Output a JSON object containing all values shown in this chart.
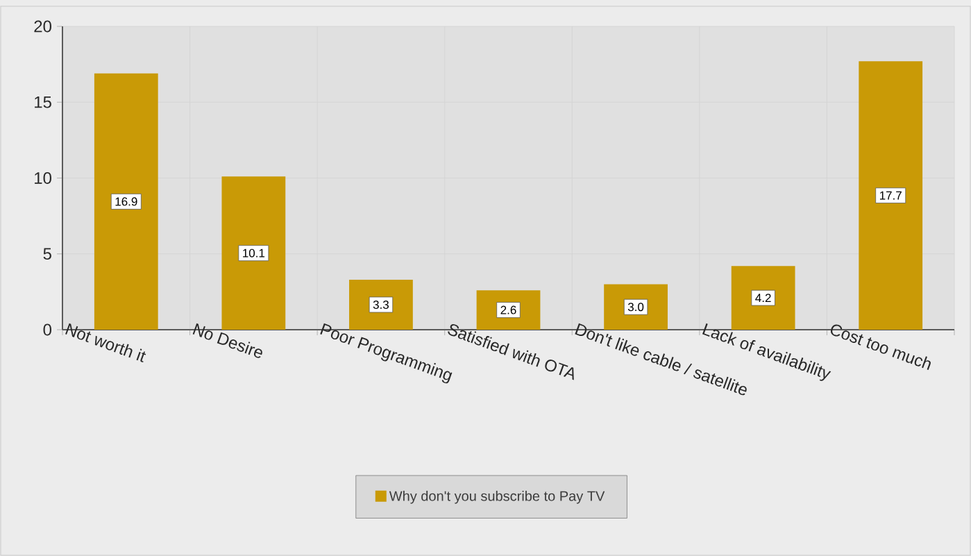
{
  "chart_data": {
    "type": "bar",
    "categories": [
      "Not worth it",
      "No Desire",
      "Poor Programming",
      "Satisfied with OTA",
      "Don't like cable / satellite",
      "Lack of availability",
      "Cost too much"
    ],
    "series": [
      {
        "name": "Why don't you subscribe to Pay TV",
        "color": "#c99a06",
        "values": [
          16.9,
          10.1,
          3.3,
          2.6,
          3.0,
          4.2,
          17.7
        ],
        "value_labels": [
          "16.9",
          "10.1",
          "3.3",
          "2.6",
          "3.0",
          "4.2",
          "17.7"
        ]
      }
    ],
    "ylim": [
      0,
      20
    ],
    "yticks": [
      0,
      5,
      10,
      15,
      20
    ],
    "grid": true,
    "legend": "bottom"
  }
}
